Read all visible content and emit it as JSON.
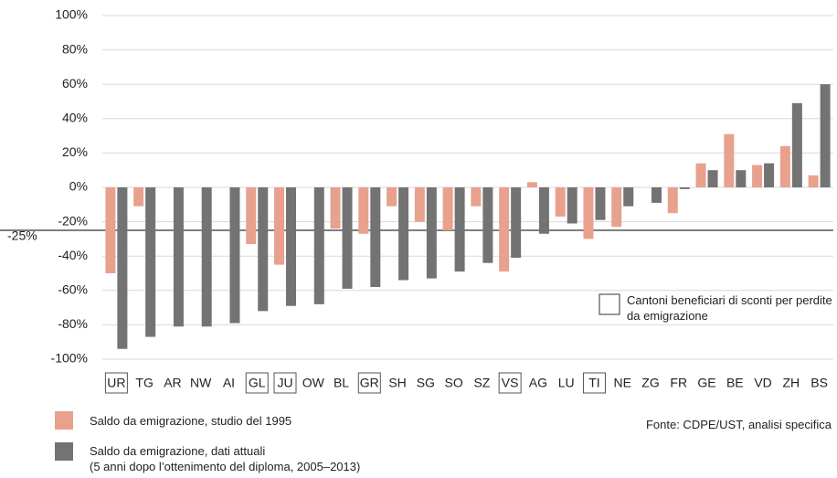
{
  "chart_data": {
    "type": "bar",
    "categories": [
      "UR",
      "TG",
      "AR",
      "NW",
      "AI",
      "GL",
      "JU",
      "OW",
      "BL",
      "GR",
      "SH",
      "SG",
      "SO",
      "SZ",
      "VS",
      "AG",
      "LU",
      "TI",
      "NE",
      "ZG",
      "FR",
      "GE",
      "BE",
      "VD",
      "ZH",
      "BS"
    ],
    "highlighted_categories": [
      "UR",
      "GL",
      "JU",
      "GR",
      "VS",
      "TI"
    ],
    "series": [
      {
        "name": "Saldo da emigrazione, studio del 1995",
        "color": "#e8a18d",
        "values": [
          -50,
          -11,
          null,
          null,
          null,
          -33,
          -45,
          null,
          -24,
          -27,
          -11,
          -20,
          -25,
          -11,
          -49,
          3,
          -17,
          -30,
          -23,
          null,
          -15,
          14,
          31,
          13,
          24,
          7
        ]
      },
      {
        "name": "Saldo da emigrazione, dati attuali\n(5 anni dopo l’ottenimento del diploma, 2005–2013)",
        "color": "#737373",
        "values": [
          -94,
          -87,
          -81,
          -81,
          -79,
          -72,
          -69,
          -68,
          -59,
          -58,
          -54,
          -53,
          -49,
          -44,
          -41,
          -27,
          -21,
          -19,
          -11,
          -9,
          -1,
          10,
          10,
          14,
          49,
          60
        ]
      }
    ],
    "ylim": [
      -100,
      100
    ],
    "yticks": [
      {
        "value": -100,
        "label": "-100%"
      },
      {
        "value": -80,
        "label": "-80%"
      },
      {
        "value": -60,
        "label": "-60%"
      },
      {
        "value": -40,
        "label": "-40%"
      },
      {
        "value": -20,
        "label": "-20%"
      },
      {
        "value": 0,
        "label": "0%"
      },
      {
        "value": 20,
        "label": "20%"
      },
      {
        "value": 40,
        "label": "40%"
      },
      {
        "value": 60,
        "label": "60%"
      },
      {
        "value": 80,
        "label": "80%"
      },
      {
        "value": 100,
        "label": "100%"
      }
    ],
    "grid": true,
    "reference_line": {
      "value": -25,
      "label": "-25%"
    },
    "highlight_note": "Cantoni beneficiari di sconti per perdite da emigrazione",
    "source": "Fonte: CDPE/UST, analisi specifica"
  }
}
